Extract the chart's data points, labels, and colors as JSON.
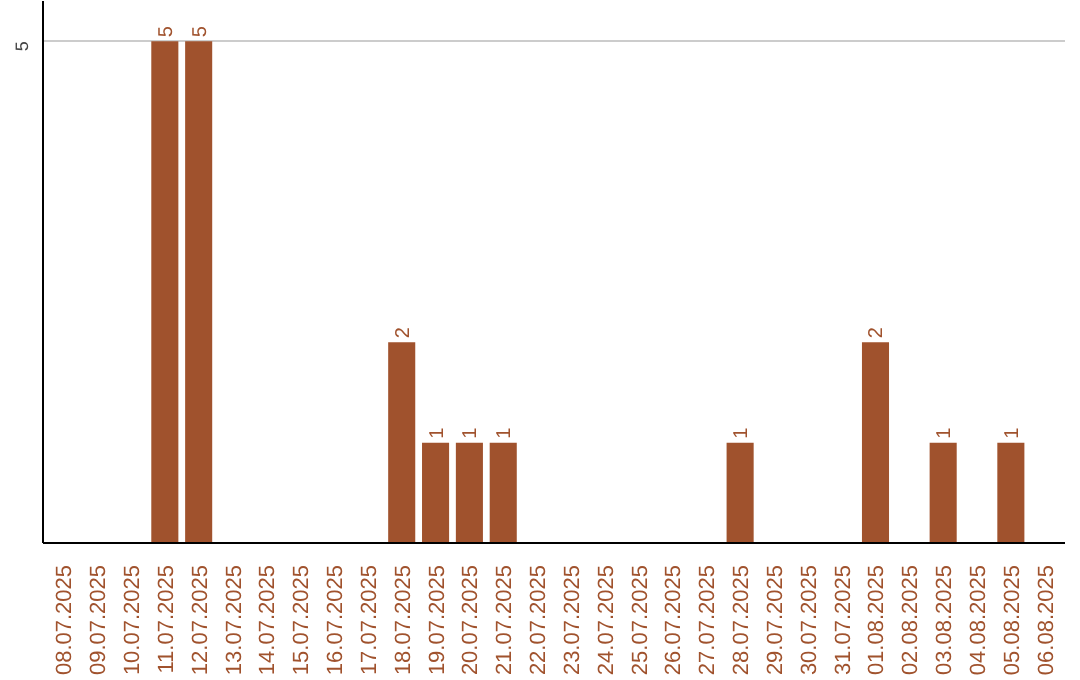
{
  "chart_data": {
    "type": "bar",
    "categories": [
      "08.07.2025",
      "09.07.2025",
      "10.07.2025",
      "11.07.2025",
      "12.07.2025",
      "13.07.2025",
      "14.07.2025",
      "15.07.2025",
      "16.07.2025",
      "17.07.2025",
      "18.07.2025",
      "19.07.2025",
      "20.07.2025",
      "21.07.2025",
      "22.07.2025",
      "23.07.2025",
      "24.07.2025",
      "25.07.2025",
      "26.07.2025",
      "27.07.2025",
      "28.07.2025",
      "29.07.2025",
      "30.07.2025",
      "31.07.2025",
      "01.08.2025",
      "02.08.2025",
      "03.08.2025",
      "04.08.2025",
      "05.08.2025",
      "06.08.2025"
    ],
    "values": [
      null,
      null,
      null,
      5,
      5,
      null,
      null,
      null,
      null,
      null,
      2,
      1,
      1,
      1,
      null,
      null,
      null,
      null,
      null,
      null,
      1,
      null,
      null,
      null,
      2,
      null,
      1,
      null,
      1,
      null
    ],
    "color": "#a0522d",
    "ylim": [
      0,
      5.4
    ],
    "yticks": [
      5
    ],
    "grid": "y",
    "data_labels": true
  }
}
